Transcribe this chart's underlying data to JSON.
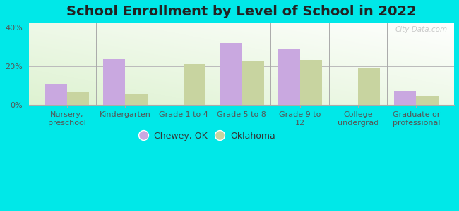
{
  "title": "School Enrollment by Level of School in 2022",
  "categories": [
    "Nursery,\npreschool",
    "Kindergarten",
    "Grade 1 to 4",
    "Grade 5 to 8",
    "Grade 9 to\n12",
    "College\nundergrad",
    "Graduate or\nprofessional"
  ],
  "chewey_values": [
    11,
    23.5,
    0,
    32,
    28.5,
    0,
    7
  ],
  "oklahoma_values": [
    6.5,
    6,
    21,
    22.5,
    23,
    19,
    4.5
  ],
  "chewey_color": "#c9a8e0",
  "oklahoma_color": "#c8d4a0",
  "ylim": [
    0,
    42
  ],
  "yticks": [
    0,
    20,
    40
  ],
  "ytick_labels": [
    "0%",
    "20%",
    "40%"
  ],
  "background_color": "#00e8e8",
  "watermark": "City-Data.com",
  "legend_chewey": "Chewey, OK",
  "legend_oklahoma": "Oklahoma",
  "bar_width": 0.38,
  "title_fontsize": 14,
  "tick_fontsize": 8,
  "divider_positions": [
    0.5,
    1.5,
    2.5,
    3.5,
    4.5,
    5.5
  ]
}
